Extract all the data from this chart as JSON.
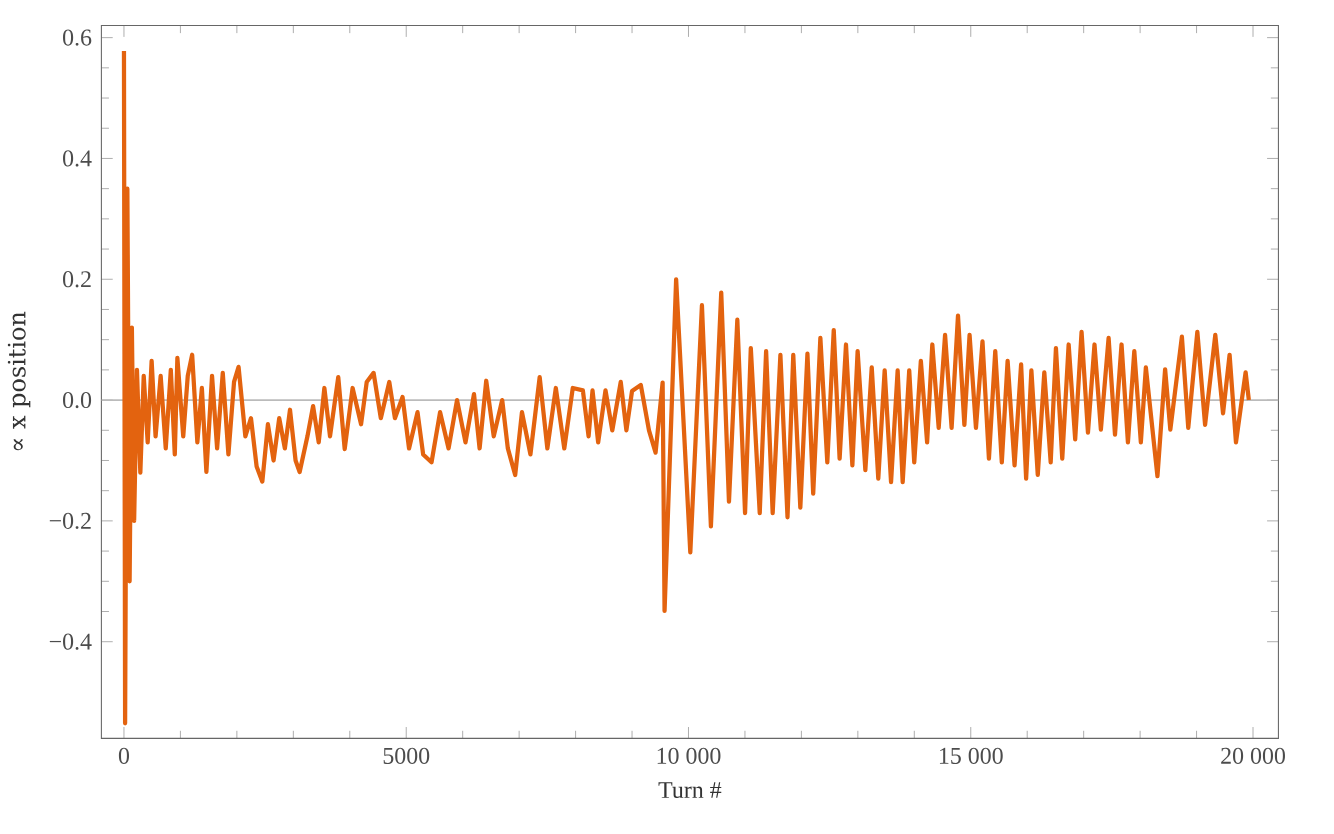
{
  "chart_data": {
    "type": "line",
    "xlabel": "Turn #",
    "ylabel": "∝ x position",
    "xlim": [
      -400,
      20450
    ],
    "ylim": [
      -0.56,
      0.62
    ],
    "xticks": [
      0,
      5000,
      {
        "value": 10000,
        "label": "10 000"
      },
      {
        "value": 15000,
        "label": "15 000"
      },
      {
        "value": 20000,
        "label": "20 000"
      }
    ],
    "yticks": [
      {
        "value": -0.4,
        "label": "−0.4"
      },
      {
        "value": -0.2,
        "label": "−0.2"
      },
      {
        "value": 0,
        "label": "0.0"
      },
      0.2,
      0.4,
      0.6
    ],
    "grid": false,
    "ref_lines": [
      {
        "axis": "y",
        "value": 0,
        "color": "#bbbbbb"
      }
    ],
    "series": [
      {
        "color": "#e3630f",
        "x": [
          0,
          20,
          60,
          100,
          140,
          180,
          230,
          290,
          350,
          420,
          490,
          560,
          650,
          740,
          830,
          900,
          946,
          1050,
          1130,
          1208,
          1300,
          1380,
          1460,
          1560,
          1650,
          1750,
          1850,
          1950,
          2030,
          2150,
          2250,
          2350,
          2451,
          2550,
          2650,
          2750,
          2850,
          2941,
          3040,
          3112,
          3250,
          3350,
          3450,
          3550,
          3650,
          3796,
          3910,
          4050,
          4200,
          4300,
          4422,
          4550,
          4700,
          4800,
          4935,
          5050,
          5200,
          5300,
          5448,
          5600,
          5750,
          5900,
          6050,
          6200,
          6300,
          6417,
          6550,
          6700,
          6800,
          6930,
          7050,
          7200,
          7364,
          7500,
          7650,
          7800,
          7950,
          8129,
          8230,
          8300,
          8400,
          8530,
          8650,
          8800,
          8900,
          9000,
          9155,
          9300,
          9417,
          9542,
          9576,
          9781,
          10032,
          10238,
          10397,
          10580,
          10717,
          10865,
          11002,
          11104,
          11262,
          11375,
          11491,
          11628,
          11754,
          11856,
          11981,
          12107,
          12209,
          12336,
          12459,
          12573,
          12677,
          12790,
          12903,
          12996,
          13133,
          13246,
          13362,
          13475,
          13588,
          13705,
          13794,
          13910,
          13999,
          14116,
          14227,
          14319,
          14432,
          14545,
          14661,
          14774,
          14887,
          14979,
          15092,
          15208,
          15322,
          15434,
          15550,
          15653,
          15776,
          15892,
          15981,
          16074,
          16187,
          16303,
          16416,
          16509,
          16621,
          16734,
          16850,
          16963,
          17076,
          17192,
          17305,
          17442,
          17555,
          17671,
          17784,
          17897,
          18013,
          18102,
          18307,
          18443,
          18535,
          18740,
          18853,
          19014,
          19151,
          19332,
          19469,
          19585,
          19698,
          19869,
          19926
        ],
        "values": [
          0.578,
          -0.535,
          0.35,
          -0.3,
          0.12,
          -0.2,
          0.05,
          -0.12,
          0.04,
          -0.07,
          0.065,
          -0.06,
          0.04,
          -0.08,
          0.05,
          -0.09,
          0.07,
          -0.06,
          0.04,
          0.075,
          -0.07,
          0.02,
          -0.119,
          0.04,
          -0.08,
          0.045,
          -0.09,
          0.03,
          0.055,
          -0.06,
          -0.03,
          -0.11,
          -0.135,
          -0.04,
          -0.1,
          -0.03,
          -0.08,
          -0.016,
          -0.1,
          -0.119,
          -0.06,
          -0.01,
          -0.07,
          0.02,
          -0.06,
          0.038,
          -0.081,
          0.02,
          -0.04,
          0.03,
          0.045,
          -0.03,
          0.03,
          -0.03,
          0.005,
          -0.08,
          -0.02,
          -0.09,
          -0.103,
          -0.02,
          -0.08,
          0.0,
          -0.07,
          0.01,
          -0.08,
          0.032,
          -0.06,
          0.0,
          -0.08,
          -0.124,
          -0.02,
          -0.09,
          0.038,
          -0.08,
          0.02,
          -0.08,
          0.02,
          0.016,
          -0.06,
          0.016,
          -0.07,
          0.016,
          -0.05,
          0.03,
          -0.05,
          0.015,
          0.025,
          -0.05,
          -0.087,
          0.029,
          -0.349,
          0.2,
          -0.252,
          0.157,
          -0.209,
          0.178,
          -0.168,
          0.133,
          -0.187,
          0.086,
          -0.187,
          0.081,
          -0.187,
          0.075,
          -0.194,
          0.075,
          -0.178,
          0.077,
          -0.155,
          0.103,
          -0.103,
          0.116,
          -0.097,
          0.092,
          -0.108,
          0.081,
          -0.116,
          0.054,
          -0.13,
          0.049,
          -0.136,
          0.049,
          -0.136,
          0.049,
          -0.103,
          0.065,
          -0.07,
          0.092,
          -0.046,
          0.108,
          -0.046,
          0.14,
          -0.041,
          0.108,
          -0.046,
          0.097,
          -0.097,
          0.081,
          -0.103,
          0.065,
          -0.108,
          0.059,
          -0.13,
          0.049,
          -0.124,
          0.046,
          -0.103,
          0.086,
          -0.097,
          0.092,
          -0.065,
          0.113,
          -0.054,
          0.092,
          -0.049,
          0.103,
          -0.057,
          0.092,
          -0.07,
          0.081,
          -0.07,
          0.054,
          -0.126,
          0.051,
          -0.049,
          0.105,
          -0.046,
          0.113,
          -0.041,
          0.108,
          -0.022,
          0.075,
          -0.07,
          0.046,
          0.0
        ]
      }
    ]
  }
}
